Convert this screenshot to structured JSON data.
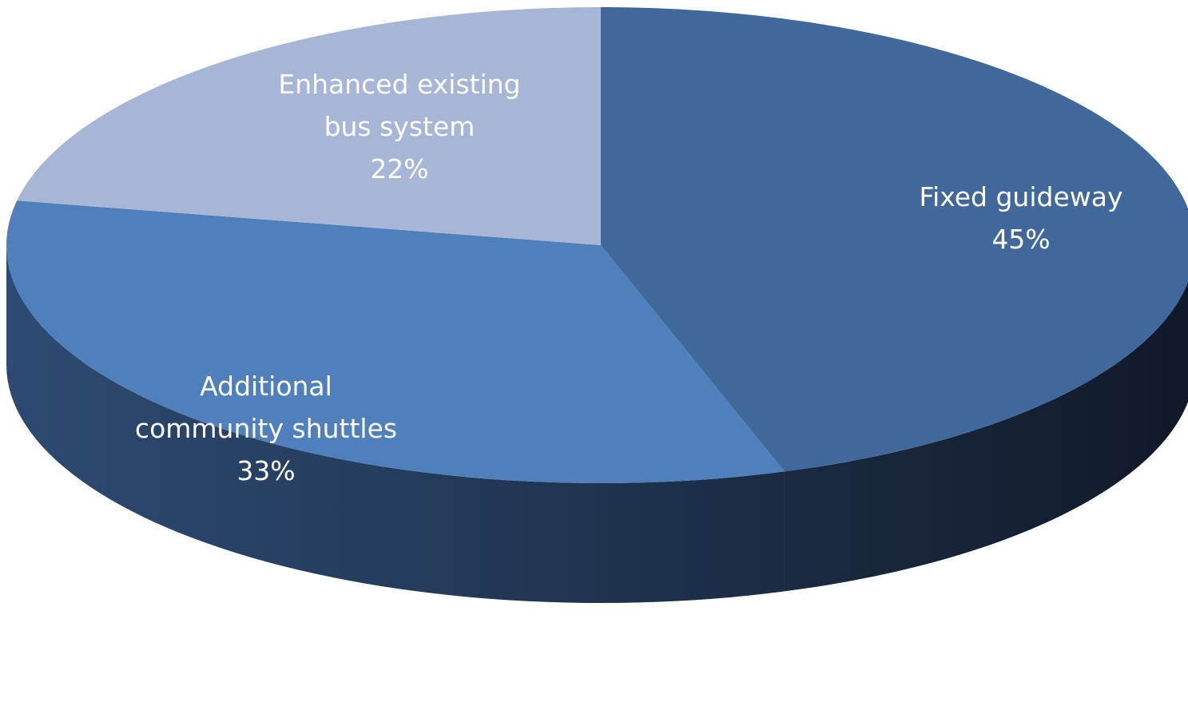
{
  "chart_data": {
    "type": "pie",
    "style": "3d",
    "title": "",
    "slices": [
      {
        "label_lines": [
          "Fixed guideway"
        ],
        "percent_label": "45%",
        "value": 45,
        "top_color": "#40689a",
        "side_color": "#1c2c45"
      },
      {
        "label_lines": [
          "Additional",
          "community shuttles"
        ],
        "percent_label": "33%",
        "value": 33,
        "top_color": "#4f80bb",
        "side_color": "#2f4e78"
      },
      {
        "label_lines": [
          "Enhanced existing",
          "bus system"
        ],
        "percent_label": "22%",
        "value": 22,
        "top_color": "#a7b6d6",
        "side_color": "#7b8fb5"
      }
    ]
  }
}
